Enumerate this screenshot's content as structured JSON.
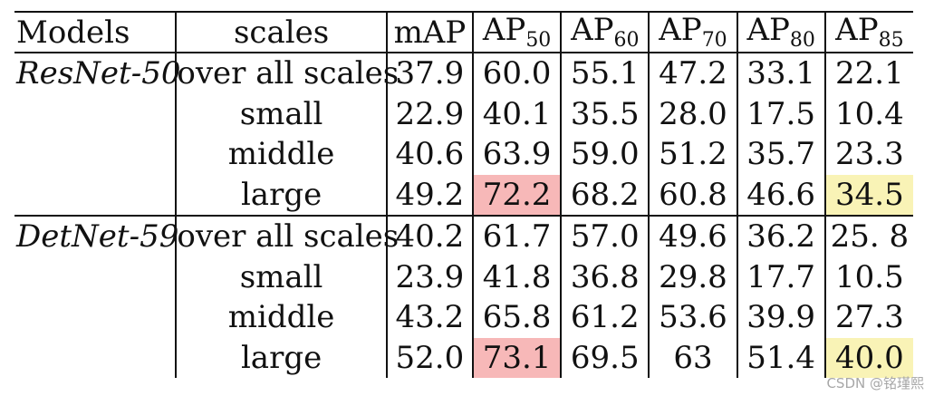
{
  "table": {
    "headers": {
      "models": "Models",
      "scales": "scales",
      "map": "mAP",
      "ap_prefix": "AP",
      "ap_subscripts": [
        "50",
        "60",
        "70",
        "80",
        "85"
      ]
    },
    "groups": [
      {
        "model": "ResNet-50",
        "rows": [
          {
            "scale": "over all scales",
            "values": [
              "37.9",
              "60.0",
              "55.1",
              "47.2",
              "33.1",
              "22.1"
            ]
          },
          {
            "scale": "small",
            "values": [
              "22.9",
              "40.1",
              "35.5",
              "28.0",
              "17.5",
              "10.4"
            ]
          },
          {
            "scale": "middle",
            "values": [
              "40.6",
              "63.9",
              "59.0",
              "51.2",
              "35.7",
              "23.3"
            ]
          },
          {
            "scale": "large",
            "values": [
              "49.2",
              "72.2",
              "68.2",
              "60.8",
              "46.6",
              "34.5"
            ]
          }
        ]
      },
      {
        "model": "DetNet-59",
        "rows": [
          {
            "scale": "over all scales",
            "values": [
              "40.2",
              "61.7",
              "57.0",
              "49.6",
              "36.2",
              "25. 8"
            ]
          },
          {
            "scale": "small",
            "values": [
              "23.9",
              "41.8",
              "36.8",
              "29.8",
              "17.7",
              "10.5"
            ]
          },
          {
            "scale": "middle",
            "values": [
              "43.2",
              "65.8",
              "61.2",
              "53.6",
              "39.9",
              "27.3"
            ]
          },
          {
            "scale": "large",
            "values": [
              "52.0",
              "73.1",
              "69.5",
              "63",
              "51.4",
              "40.0"
            ]
          }
        ]
      }
    ],
    "highlight_colors": {
      "red": "#f7b8b8",
      "yellow": "#f9f3b6"
    }
  },
  "watermark": "CSDN @铭瑾熙"
}
